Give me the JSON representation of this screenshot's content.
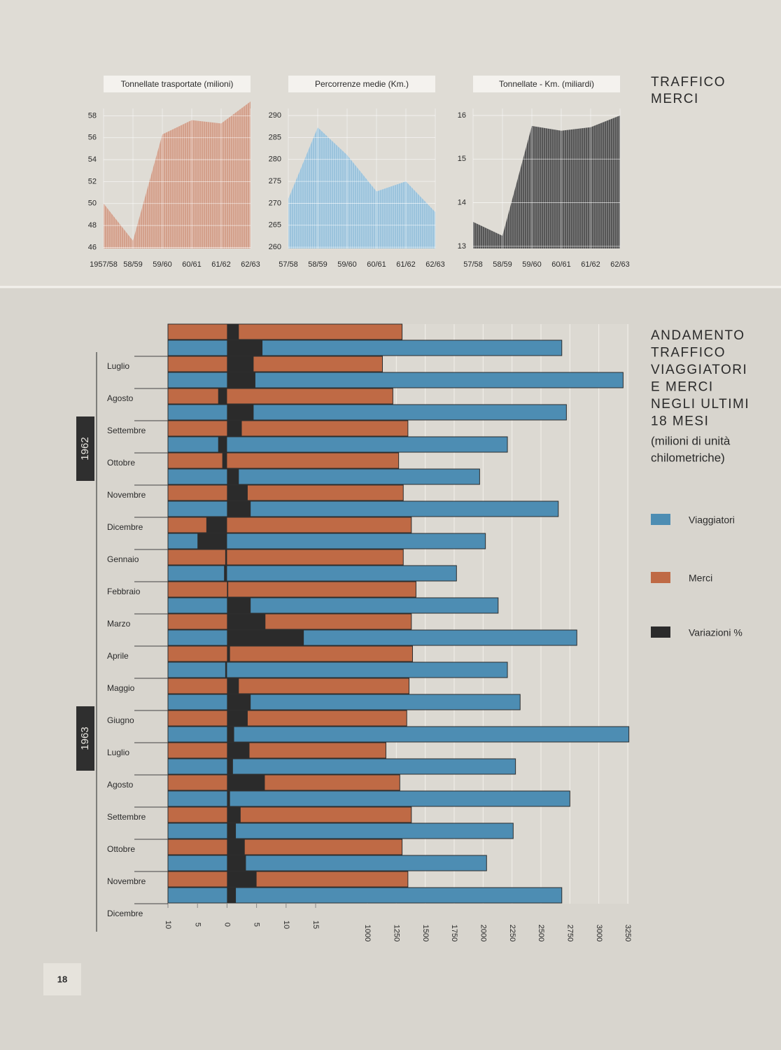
{
  "page_number": "18",
  "chart_data": [
    {
      "type": "area",
      "title": "Tonnellate trasportate (milioni)",
      "color": "#d3a08b",
      "categories": [
        "1957/58",
        "58/59",
        "59/60",
        "60/61",
        "61/62",
        "62/63"
      ],
      "values": [
        50.0,
        46.6,
        56.3,
        57.6,
        57.3,
        59.3
      ],
      "ylim": [
        45.9,
        59.3
      ],
      "yticks": [
        46,
        48,
        50,
        52,
        54,
        56,
        58
      ],
      "grid": true
    },
    {
      "type": "area",
      "title": "Percorrenze medie (Km.)",
      "color": "#9bc3dc",
      "categories": [
        "57/58",
        "58/59",
        "59/60",
        "60/61",
        "61/62",
        "62/63"
      ],
      "values": [
        271,
        287.3,
        281,
        272.7,
        275,
        268
      ],
      "ylim": [
        259.7,
        293.2
      ],
      "yticks": [
        260,
        265,
        270,
        275,
        280,
        285,
        290
      ],
      "grid": true
    },
    {
      "type": "area",
      "title": "Tonnellate - Km. (miliardi)",
      "color": "#555555",
      "categories": [
        "57/58",
        "58/59",
        "59/60",
        "60/61",
        "61/62",
        "62/63"
      ],
      "values": [
        13.56,
        13.24,
        15.76,
        15.65,
        15.73,
        16.0
      ],
      "ylim": [
        12.95,
        16.32
      ],
      "yticks": [
        13,
        14,
        15,
        16
      ],
      "grid": true,
      "section_title": [
        "TRAFFICO",
        "MERCI"
      ]
    },
    {
      "type": "bar",
      "orientation": "horizontal",
      "title": [
        "ANDAMENTO",
        "TRAFFICO",
        "VIAGGIATORI",
        "E MERCI",
        "NEGLI ULTIMI",
        "18 MESI"
      ],
      "subtitle": [
        "(milioni di unità",
        "chilometriche)"
      ],
      "groups": [
        {
          "label": "1962",
          "categories": [
            "Luglio",
            "Agosto",
            "Settembre",
            "Ottobre",
            "Novembre",
            "Dicembre"
          ]
        },
        {
          "label": "1963",
          "categories": [
            "Gennaio",
            "Febbraio",
            "Marzo",
            "Aprile",
            "Maggio",
            "Giugno",
            "Luglio",
            "Agosto",
            "Settembre",
            "Ottobre",
            "Novembre",
            "Dicembre"
          ]
        }
      ],
      "series": [
        {
          "name": "Viaggiatori",
          "color": "#4d8db3",
          "values": [
            2680,
            3210,
            2720,
            2210,
            1970,
            2650,
            2020,
            1770,
            2130,
            2810,
            2210,
            2320,
            3260,
            2280,
            2750,
            2260,
            2030,
            2680
          ],
          "changes": [
            6,
            4.8,
            4.5,
            -1.5,
            2,
            4,
            -5,
            -0.5,
            4,
            13,
            -0.3,
            4,
            1.2,
            1,
            0.5,
            1.5,
            3.2,
            1.5
          ]
        },
        {
          "name": "Merci",
          "color": "#bf6a45",
          "values": [
            1300,
            1130,
            1220,
            1350,
            1270,
            1310,
            1380,
            1310,
            1420,
            1380,
            1390,
            1360,
            1340,
            1160,
            1280,
            1380,
            1300,
            1350
          ],
          "changes": [
            2,
            4.5,
            -1.5,
            2.5,
            -0.8,
            3.5,
            -3.5,
            -0.3,
            0.2,
            6.5,
            0.5,
            2,
            3.5,
            3.8,
            6.4,
            2.3,
            3,
            5
          ]
        }
      ],
      "change_legend": {
        "name": "Variazioni %",
        "color": "#2b2b2b"
      },
      "xlim": [
        1000,
        3250
      ],
      "xticks": [
        1000,
        1250,
        1500,
        1750,
        2000,
        2250,
        2500,
        2750,
        3000,
        3250
      ],
      "x2lim": [
        -10,
        15
      ],
      "x2ticks": [
        {
          "value": -10,
          "label": "10"
        },
        {
          "value": -5,
          "label": "5"
        },
        0,
        5,
        10,
        15
      ],
      "grid": true,
      "legend": "right"
    }
  ]
}
